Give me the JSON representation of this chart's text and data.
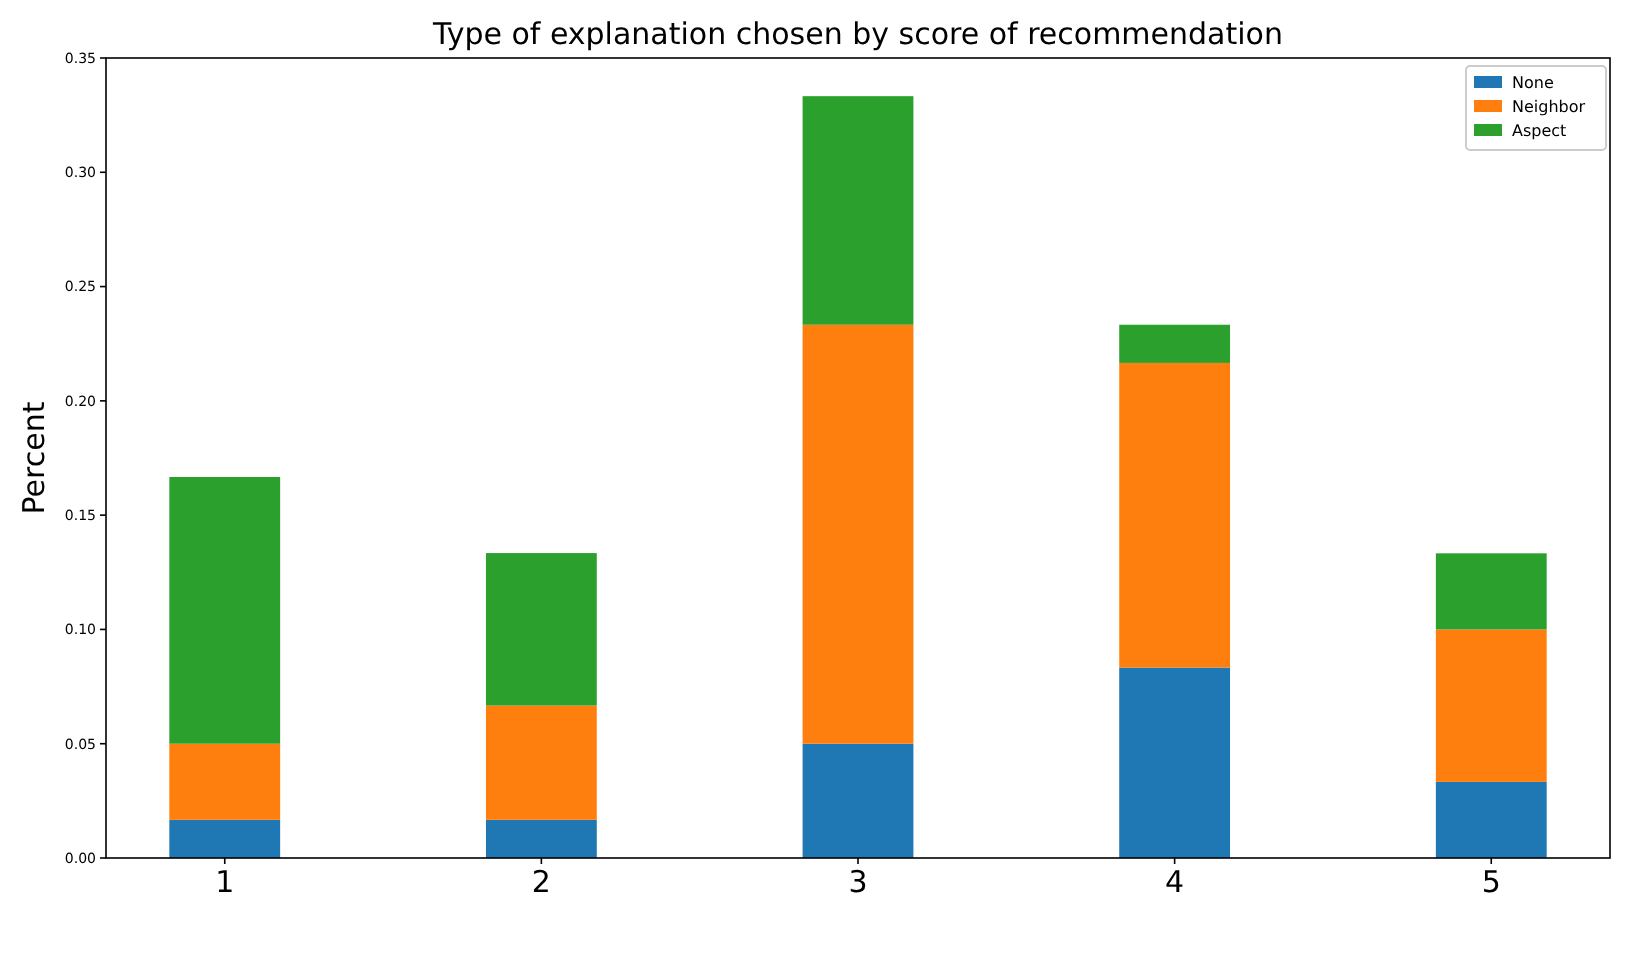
{
  "chart_data": {
    "type": "bar",
    "title": "Type of explanation chosen by score of recommendation",
    "ylabel": "Percent",
    "categories": [
      "1",
      "2",
      "3",
      "4",
      "5"
    ],
    "stacked": true,
    "legend": "top right",
    "ylim": [
      0,
      0.35
    ],
    "yticks": [
      {
        "value": 0,
        "label": "0.00"
      },
      {
        "value": 0.05,
        "label": "0.05"
      },
      {
        "value": 0.1,
        "label": "0.10"
      },
      {
        "value": 0.15,
        "label": "0.15"
      },
      {
        "value": 0.2,
        "label": "0.20"
      },
      {
        "value": 0.25,
        "label": "0.25"
      },
      {
        "value": 0.3,
        "label": "0.30"
      },
      {
        "value": 0.35,
        "label": "0.35"
      }
    ],
    "series": [
      {
        "name": "None",
        "color": "#1f77b4",
        "values": [
          0.0167,
          0.0167,
          0.05,
          0.0833,
          0.0333
        ]
      },
      {
        "name": "Neighbor",
        "color": "#ff7f0e",
        "values": [
          0.0333,
          0.05,
          0.1833,
          0.1333,
          0.0667
        ]
      },
      {
        "name": "Aspect",
        "color": "#2ca02c",
        "values": [
          0.1167,
          0.0667,
          0.1,
          0.0167,
          0.0333
        ]
      }
    ]
  }
}
